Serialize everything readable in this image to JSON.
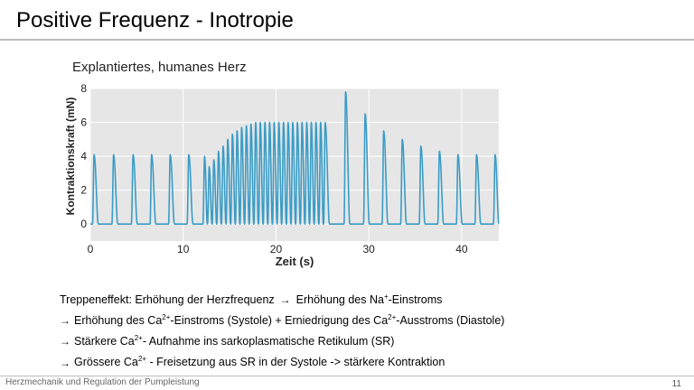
{
  "slide": {
    "title": "Positive Frequenz - Inotropie",
    "figure_caption": "Explantiertes, humanes Herz",
    "footer": "Herzmechanik und Regulation der Pumpleistung",
    "page_number": "11"
  },
  "bullets": [
    {
      "pre": "Treppeneffekt:  Erhöhung der Herzfrequenz",
      "arrow": "→",
      "post": "Erhöhung des Na",
      "sup": "+",
      "tail": "-Einstroms"
    },
    {
      "arrow": "→",
      "parts": [
        "Erhöhung des Ca",
        "2+",
        "-Einstroms (Systole) + Erniedrigung des  Ca",
        "2+",
        "-Ausstroms (Diastole)"
      ]
    },
    {
      "arrow": "→",
      "parts": [
        "Stärkere  Ca",
        "2+",
        "- Aufnahme ins sarkoplasmatische Retikulum (SR)"
      ]
    },
    {
      "arrow": "→",
      "parts": [
        "Grössere  Ca",
        "2+",
        " - Freisetzung aus SR in der Systole  ->  stärkere Kontraktion"
      ]
    }
  ],
  "chart_data": {
    "type": "line",
    "xlabel": "Zeit (s)",
    "ylabel": "Kontraktionskraft (mN)",
    "xlim": [
      0,
      44
    ],
    "ylim": [
      -1,
      8
    ],
    "xticks": [
      0,
      10,
      20,
      30,
      40
    ],
    "yticks": [
      0,
      2,
      4,
      6,
      8
    ],
    "grid": true,
    "line_color": "#3a9cc6",
    "baseline": 0,
    "beats": [
      {
        "t": 0.4,
        "peak": 4.1
      },
      {
        "t": 2.5,
        "peak": 4.1
      },
      {
        "t": 4.6,
        "peak": 4.1
      },
      {
        "t": 6.6,
        "peak": 4.1
      },
      {
        "t": 8.6,
        "peak": 4.1
      },
      {
        "t": 10.6,
        "peak": 4.1
      },
      {
        "t": 12.3,
        "peak": 4.0
      },
      {
        "t": 12.8,
        "peak": 3.4
      },
      {
        "t": 13.3,
        "peak": 3.8
      },
      {
        "t": 13.8,
        "peak": 4.3
      },
      {
        "t": 14.3,
        "peak": 4.6
      },
      {
        "t": 14.8,
        "peak": 5.0
      },
      {
        "t": 15.3,
        "peak": 5.3
      },
      {
        "t": 15.8,
        "peak": 5.5
      },
      {
        "t": 16.3,
        "peak": 5.7
      },
      {
        "t": 16.8,
        "peak": 5.8
      },
      {
        "t": 17.3,
        "peak": 5.9
      },
      {
        "t": 17.8,
        "peak": 6.0
      },
      {
        "t": 18.3,
        "peak": 6.0
      },
      {
        "t": 18.8,
        "peak": 6.0
      },
      {
        "t": 19.3,
        "peak": 6.0
      },
      {
        "t": 19.8,
        "peak": 6.0
      },
      {
        "t": 20.3,
        "peak": 6.0
      },
      {
        "t": 20.8,
        "peak": 6.0
      },
      {
        "t": 21.3,
        "peak": 6.0
      },
      {
        "t": 21.8,
        "peak": 6.0
      },
      {
        "t": 22.3,
        "peak": 6.0
      },
      {
        "t": 22.8,
        "peak": 6.0
      },
      {
        "t": 23.3,
        "peak": 6.0
      },
      {
        "t": 23.8,
        "peak": 6.0
      },
      {
        "t": 24.3,
        "peak": 6.0
      },
      {
        "t": 24.8,
        "peak": 6.0
      },
      {
        "t": 25.3,
        "peak": 6.0
      },
      {
        "t": 27.5,
        "peak": 7.8
      },
      {
        "t": 29.6,
        "peak": 6.5
      },
      {
        "t": 31.6,
        "peak": 5.5
      },
      {
        "t": 33.6,
        "peak": 5.0
      },
      {
        "t": 35.6,
        "peak": 4.6
      },
      {
        "t": 37.6,
        "peak": 4.3
      },
      {
        "t": 39.6,
        "peak": 4.1
      },
      {
        "t": 41.6,
        "peak": 4.1
      },
      {
        "t": 43.6,
        "peak": 4.1
      }
    ]
  }
}
